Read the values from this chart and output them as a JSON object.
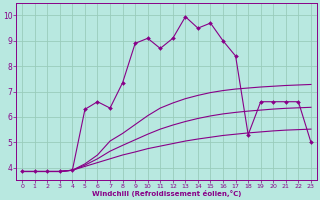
{
  "xlabel": "Windchill (Refroidissement éolien,°C)",
  "background_color": "#b8e8e0",
  "line_color": "#880088",
  "grid_color": "#99ccbb",
  "xlim": [
    -0.5,
    23.5
  ],
  "ylim": [
    3.5,
    10.5
  ],
  "xticks": [
    0,
    1,
    2,
    3,
    4,
    5,
    6,
    7,
    8,
    9,
    10,
    11,
    12,
    13,
    14,
    15,
    16,
    17,
    18,
    19,
    20,
    21,
    22,
    23
  ],
  "yticks": [
    4,
    5,
    6,
    7,
    8,
    9,
    10
  ],
  "series": [
    {
      "x": [
        0,
        1,
        2,
        3,
        4,
        5,
        6,
        7,
        8,
        9,
        10,
        11,
        12,
        13,
        14,
        15,
        16,
        17,
        18,
        19,
        20,
        21,
        22,
        23
      ],
      "y": [
        3.85,
        3.85,
        3.85,
        3.85,
        3.9,
        4.05,
        4.2,
        4.35,
        4.5,
        4.62,
        4.75,
        4.85,
        4.95,
        5.05,
        5.13,
        5.2,
        5.27,
        5.32,
        5.37,
        5.41,
        5.45,
        5.48,
        5.5,
        5.52
      ],
      "marker": false
    },
    {
      "x": [
        0,
        1,
        2,
        3,
        4,
        5,
        6,
        7,
        8,
        9,
        10,
        11,
        12,
        13,
        14,
        15,
        16,
        17,
        18,
        19,
        20,
        21,
        22,
        23
      ],
      "y": [
        3.85,
        3.85,
        3.85,
        3.85,
        3.9,
        4.1,
        4.35,
        4.65,
        4.88,
        5.1,
        5.32,
        5.52,
        5.68,
        5.82,
        5.94,
        6.04,
        6.12,
        6.18,
        6.23,
        6.27,
        6.31,
        6.34,
        6.36,
        6.38
      ],
      "marker": false
    },
    {
      "x": [
        0,
        1,
        2,
        3,
        4,
        5,
        6,
        7,
        8,
        9,
        10,
        11,
        12,
        13,
        14,
        15,
        16,
        17,
        18,
        19,
        20,
        21,
        22,
        23
      ],
      "y": [
        3.85,
        3.85,
        3.85,
        3.85,
        3.9,
        4.15,
        4.5,
        5.05,
        5.35,
        5.7,
        6.05,
        6.35,
        6.55,
        6.72,
        6.85,
        6.96,
        7.04,
        7.1,
        7.14,
        7.18,
        7.21,
        7.24,
        7.26,
        7.28
      ],
      "marker": false
    },
    {
      "x": [
        0,
        1,
        2,
        3,
        4,
        5,
        6,
        7,
        8,
        9,
        10,
        11,
        12,
        13,
        14,
        15,
        16,
        17,
        18,
        19,
        20,
        21,
        22,
        23
      ],
      "y": [
        3.85,
        3.85,
        3.85,
        3.85,
        3.9,
        6.3,
        6.6,
        6.35,
        7.35,
        8.9,
        9.1,
        8.7,
        9.1,
        9.95,
        9.5,
        9.7,
        9.0,
        8.4,
        5.3,
        6.6,
        6.6,
        6.6,
        6.6,
        5.0
      ],
      "marker": true
    }
  ]
}
